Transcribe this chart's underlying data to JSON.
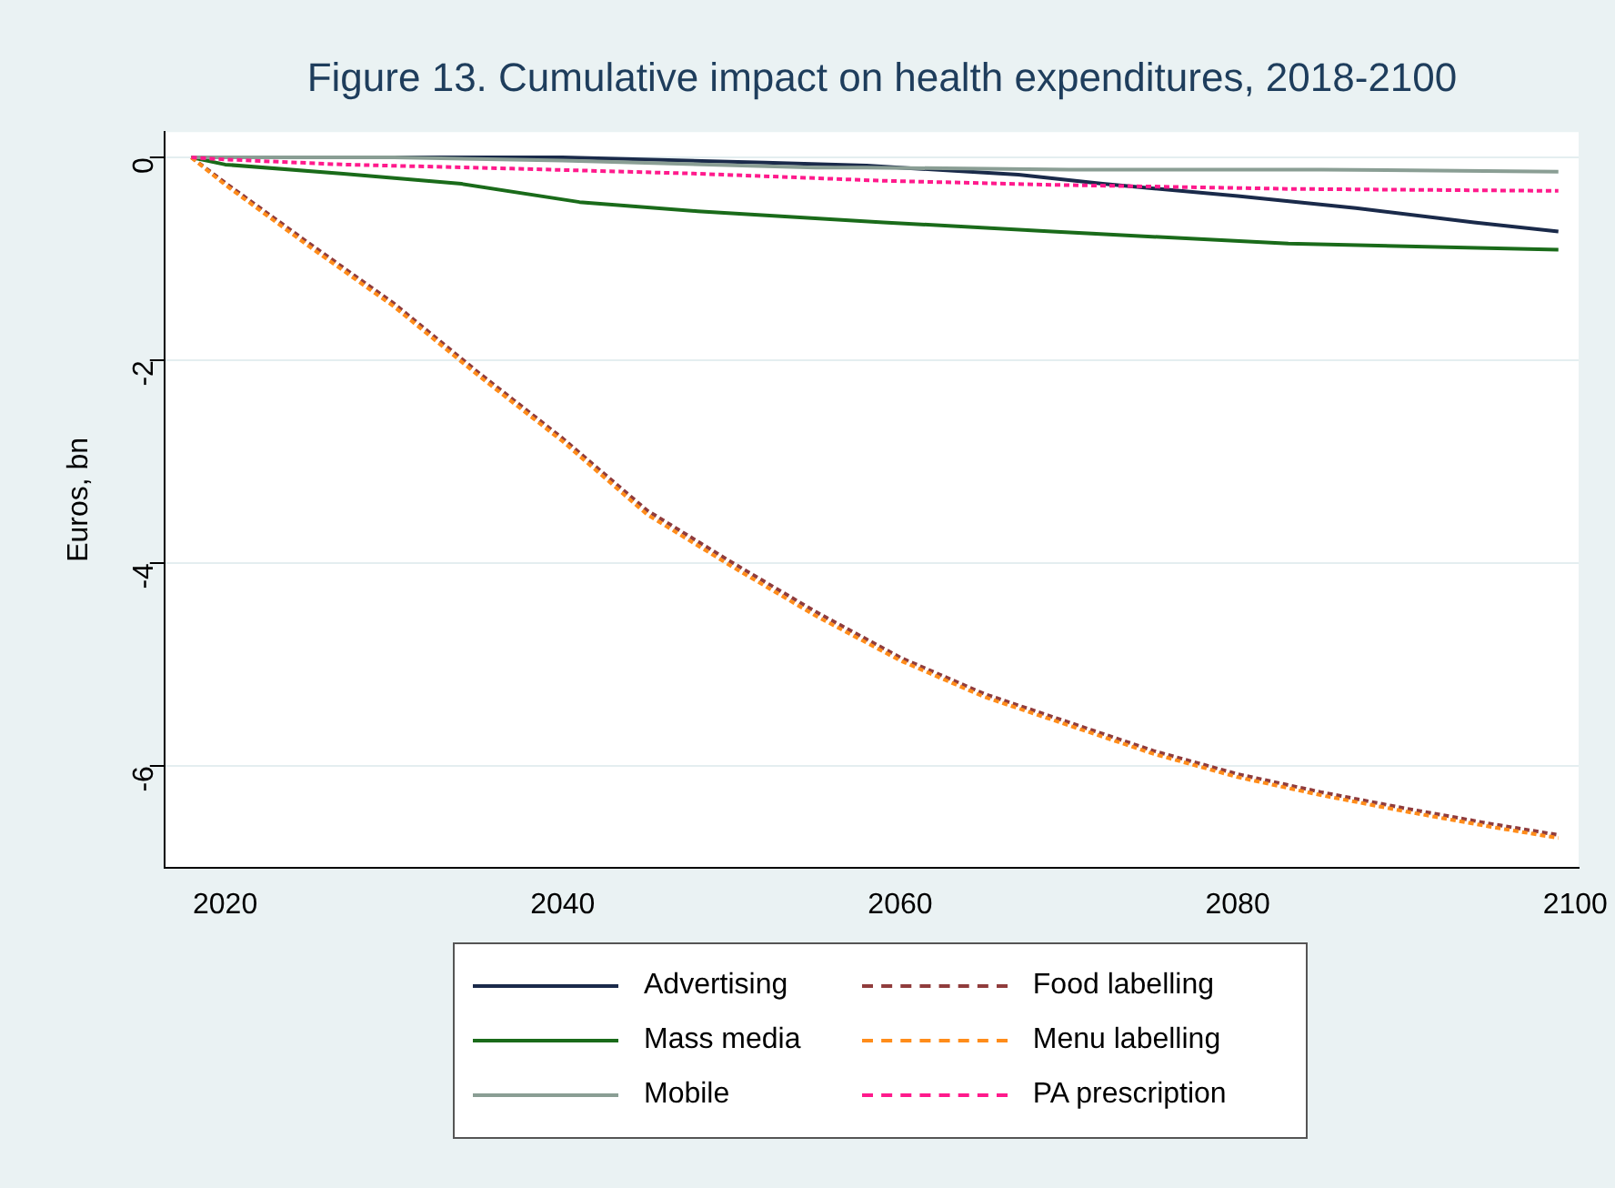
{
  "chart_data": {
    "type": "line",
    "title": "Figure 13. Cumulative impact on health expenditures, 2018-2100",
    "ylabel": "Euros, bn",
    "xlim": [
      2016.4,
      2100.2
    ],
    "xticks": [
      2020,
      2040,
      2060,
      2080,
      2100
    ],
    "ylim": [
      -7,
      0.25
    ],
    "yticks": [
      0,
      -2,
      -4,
      -6
    ],
    "grid": "y",
    "legend": "bottom",
    "marker": "none",
    "series": [
      {
        "name": "Advertising",
        "color": "#1a2a4a",
        "line_style": "solid",
        "x": [
          2018,
          2030,
          2040,
          2052,
          2058,
          2067,
          2072,
          2080,
          2087,
          2094,
          2099
        ],
        "values": [
          0,
          0,
          0,
          -0.05,
          -0.08,
          -0.17,
          -0.26,
          -0.38,
          -0.5,
          -0.64,
          -0.73
        ]
      },
      {
        "name": "Mass media",
        "color": "#1a6b1a",
        "line_style": "solid",
        "x": [
          2018,
          2020,
          2027,
          2034,
          2041,
          2048,
          2059,
          2069,
          2083,
          2099
        ],
        "values": [
          0,
          -0.07,
          -0.16,
          -0.26,
          -0.44,
          -0.53,
          -0.64,
          -0.73,
          -0.85,
          -0.91
        ]
      },
      {
        "name": "Mobile",
        "color": "#8a9e94",
        "line_style": "solid",
        "x": [
          2018,
          2030,
          2040,
          2055,
          2058,
          2070,
          2085,
          2099
        ],
        "values": [
          0,
          0,
          -0.03,
          -0.1,
          -0.1,
          -0.12,
          -0.12,
          -0.14
        ]
      },
      {
        "name": "Food labelling",
        "color": "#903c3c",
        "line_style": "dashed",
        "x": [
          2018,
          2020,
          2025,
          2030,
          2035,
          2040,
          2045,
          2050,
          2055,
          2060,
          2065,
          2070,
          2075,
          2080,
          2085,
          2090,
          2095,
          2099
        ],
        "values": [
          0,
          -0.25,
          -0.85,
          -1.44,
          -2.12,
          -2.77,
          -3.48,
          -3.99,
          -4.48,
          -4.93,
          -5.29,
          -5.57,
          -5.85,
          -6.08,
          -6.26,
          -6.42,
          -6.57,
          -6.68
        ]
      },
      {
        "name": "Menu labelling",
        "color": "#ff8c1a",
        "line_style": "dashed",
        "x": [
          2018,
          2020,
          2025,
          2030,
          2035,
          2040,
          2045,
          2050,
          2055,
          2060,
          2065,
          2070,
          2075,
          2080,
          2085,
          2090,
          2095,
          2099
        ],
        "values": [
          0,
          -0.27,
          -0.88,
          -1.47,
          -2.15,
          -2.8,
          -3.52,
          -4.03,
          -4.52,
          -4.96,
          -5.32,
          -5.6,
          -5.88,
          -6.11,
          -6.29,
          -6.45,
          -6.6,
          -6.71
        ]
      },
      {
        "name": "PA prescription",
        "color": "#ff1a8c",
        "line_style": "dashed",
        "x": [
          2018,
          2020,
          2027,
          2037,
          2048,
          2059,
          2069,
          2083,
          2099
        ],
        "values": [
          0,
          -0.02,
          -0.07,
          -0.11,
          -0.16,
          -0.23,
          -0.27,
          -0.31,
          -0.33
        ]
      }
    ]
  }
}
